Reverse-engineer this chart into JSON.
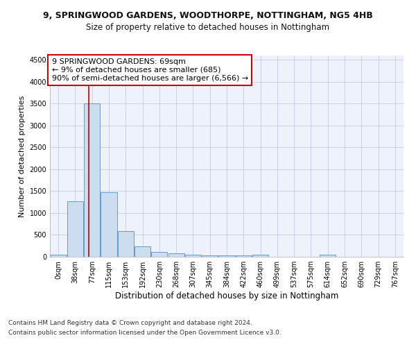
{
  "title1": "9, SPRINGWOOD GARDENS, WOODTHORPE, NOTTINGHAM, NG5 4HB",
  "title2": "Size of property relative to detached houses in Nottingham",
  "xlabel": "Distribution of detached houses by size in Nottingham",
  "ylabel": "Number of detached properties",
  "bin_labels": [
    "0sqm",
    "38sqm",
    "77sqm",
    "115sqm",
    "153sqm",
    "192sqm",
    "230sqm",
    "268sqm",
    "307sqm",
    "345sqm",
    "384sqm",
    "422sqm",
    "460sqm",
    "499sqm",
    "537sqm",
    "575sqm",
    "614sqm",
    "652sqm",
    "690sqm",
    "729sqm",
    "767sqm"
  ],
  "bar_values": [
    50,
    1270,
    3500,
    1480,
    580,
    240,
    115,
    85,
    55,
    35,
    30,
    30,
    55,
    0,
    0,
    0,
    55,
    0,
    0,
    0,
    0
  ],
  "bar_color": "#ccddf0",
  "bar_edge_color": "#6699cc",
  "ylim": [
    0,
    4600
  ],
  "yticks": [
    0,
    500,
    1000,
    1500,
    2000,
    2500,
    3000,
    3500,
    4000,
    4500
  ],
  "vline_color": "#cc0000",
  "vline_pos": 1.795,
  "annotation_text": "9 SPRINGWOOD GARDENS: 69sqm\n← 9% of detached houses are smaller (685)\n90% of semi-detached houses are larger (6,566) →",
  "annotation_box_facecolor": "#ffffff",
  "annotation_box_edgecolor": "#cc0000",
  "footer1": "Contains HM Land Registry data © Crown copyright and database right 2024.",
  "footer2": "Contains public sector information licensed under the Open Government Licence v3.0.",
  "background_color": "#eef2fb",
  "grid_color": "#c8d0e8",
  "title1_fontsize": 9,
  "title2_fontsize": 8.5,
  "xlabel_fontsize": 8.5,
  "ylabel_fontsize": 8,
  "annotation_fontsize": 8,
  "footer_fontsize": 6.5,
  "tick_fontsize": 7
}
